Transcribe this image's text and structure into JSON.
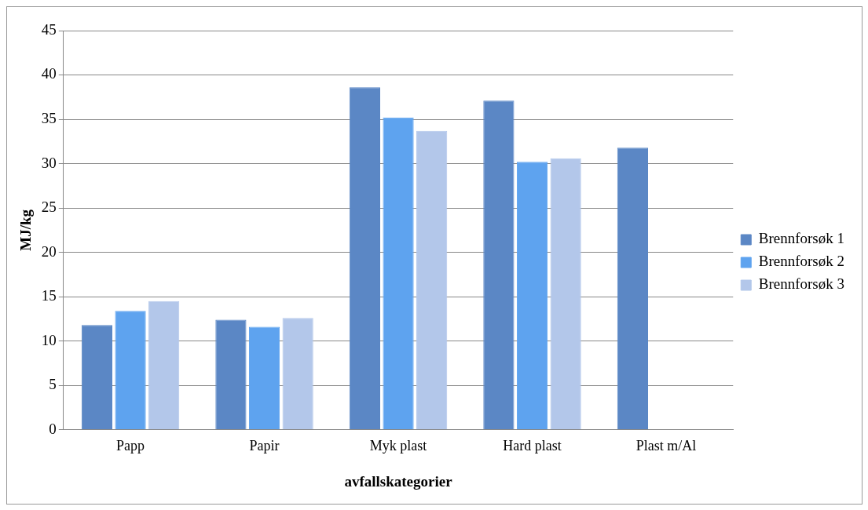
{
  "chart_data": {
    "type": "bar",
    "xlabel": "avfallskategorier",
    "ylabel": "MJ/kg",
    "categories": [
      "Papp",
      "Papir",
      "Myk plast",
      "Hard plast",
      "Plast m/Al"
    ],
    "series": [
      {
        "name": "Brennforsøk 1",
        "color": "#5b87c5",
        "values": [
          11.8,
          12.4,
          38.6,
          37.1,
          31.8
        ]
      },
      {
        "name": "Brennforsøk 2",
        "color": "#5ea3ef",
        "values": [
          13.4,
          11.6,
          35.2,
          30.2,
          null
        ]
      },
      {
        "name": "Brennforsøk 3",
        "color": "#b3c7ea",
        "values": [
          14.5,
          12.6,
          33.7,
          30.6,
          null
        ]
      }
    ],
    "ylim": [
      0,
      45
    ],
    "yticks": [
      0,
      5,
      10,
      15,
      20,
      25,
      30,
      35,
      40,
      45
    ],
    "grid": "y",
    "legend": "right"
  }
}
